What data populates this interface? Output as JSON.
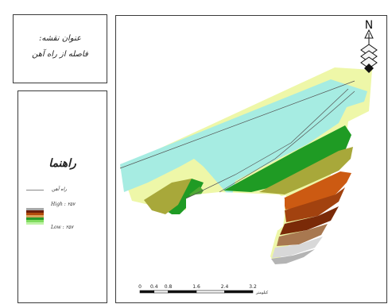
{
  "title_box": {
    "line1": "عنوان نقشه:",
    "line2": "فاصله از راه آهن"
  },
  "legend": {
    "title": "راهنما",
    "railway_label": "راه آهن",
    "high_label": "High : ۲۵۷",
    "low_label": "Low : ۲۵۷",
    "ramp_colors": [
      "#ffffff",
      "#a8a8a8",
      "#6b1f0c",
      "#b24a0c",
      "#d9a35a",
      "#2a9a2a",
      "#7fdc5e",
      "#bff2a6"
    ]
  },
  "map": {
    "north_letter": "N",
    "zone_colors": {
      "cyan": "#a6ece2",
      "pale_yellow": "#eef7a8",
      "green": "#1f9b24",
      "olive": "#a8a83a",
      "mid_green": "#4ea832",
      "orange": "#cc5a12",
      "rust": "#a2420f",
      "brown": "#7a2a08",
      "tan": "#a87850",
      "light_gray": "#d8d8d8",
      "gray": "#b4b4b4"
    },
    "scale_bar": {
      "ticks": [
        "0",
        "0.4",
        "0.8",
        "1.6",
        "2.4",
        "3.2"
      ],
      "unit": "کیلومتر"
    }
  }
}
